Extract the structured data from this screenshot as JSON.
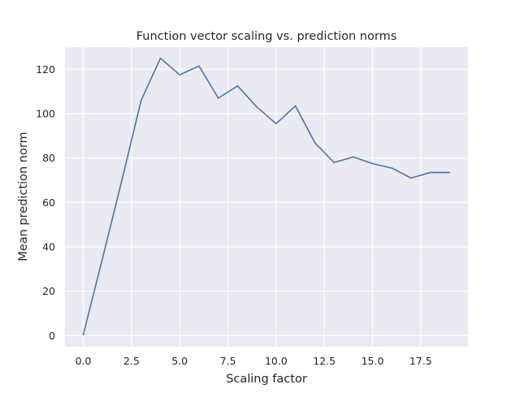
{
  "chart_data": {
    "type": "line",
    "title": "Function vector scaling vs. prediction norms",
    "xlabel": "Scaling factor",
    "ylabel": "Mean prediction norm",
    "xlim": [
      -0.95,
      19.95
    ],
    "ylim": [
      -5,
      130
    ],
    "xticks": [
      0,
      2.5,
      5,
      7.5,
      10,
      12.5,
      15,
      17.5
    ],
    "xtick_labels": [
      "0.0",
      "2.5",
      "5.0",
      "7.5",
      "10.0",
      "12.5",
      "15.0",
      "17.5"
    ],
    "yticks": [
      0,
      20,
      40,
      60,
      80,
      100,
      120
    ],
    "ytick_labels": [
      "0",
      "20",
      "40",
      "60",
      "80",
      "100",
      "120"
    ],
    "grid": true,
    "background": "#eaeaf2",
    "grid_color": "#ffffff",
    "line_color": "#4c72b0",
    "x": [
      0,
      1,
      2,
      3,
      4,
      5,
      6,
      7,
      8,
      9,
      10,
      11,
      12,
      13,
      14,
      15,
      16,
      17,
      18,
      19
    ],
    "y": [
      0.5,
      35,
      70,
      106,
      125,
      117.5,
      121.5,
      107,
      112.5,
      103,
      95.5,
      103.5,
      87,
      78,
      80.5,
      77.5,
      75.5,
      71,
      73.5,
      73.5
    ]
  }
}
